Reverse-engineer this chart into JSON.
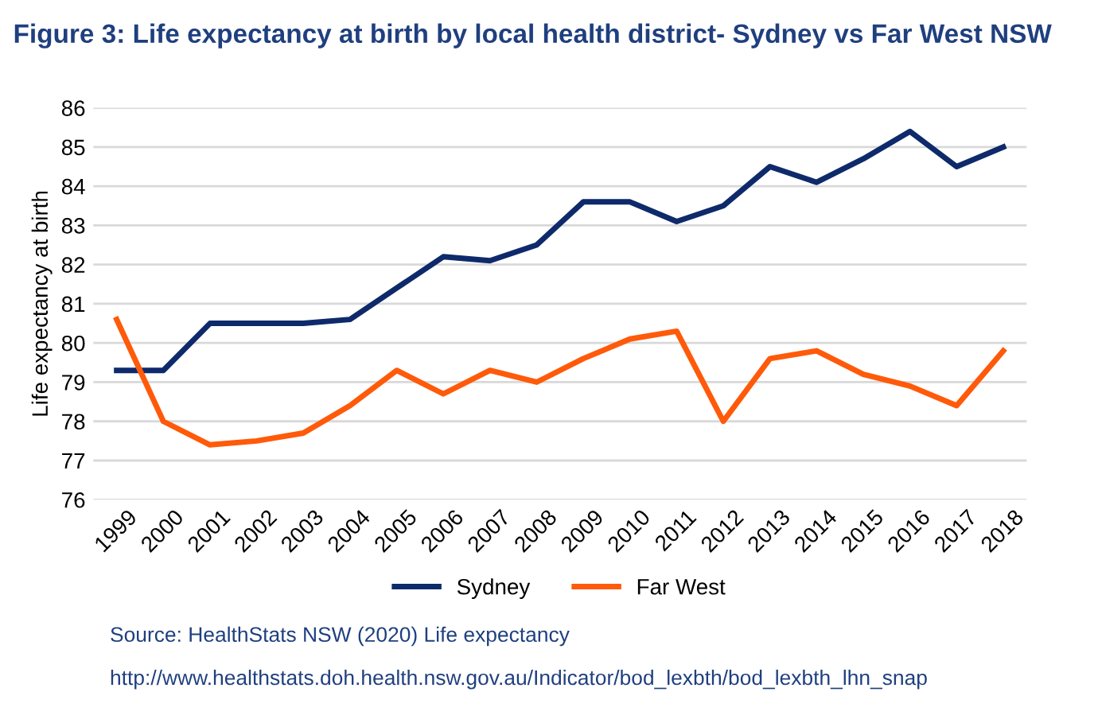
{
  "chart_data": {
    "type": "line",
    "title": "Figure 3: Life expectancy at birth by local health district- Sydney vs Far West NSW",
    "ylabel": "Life expectancy at birth",
    "categories": [
      "1999",
      "2000",
      "2001",
      "2002",
      "2003",
      "2004",
      "2005",
      "2006",
      "2007",
      "2008",
      "2009",
      "2010",
      "2011",
      "2012",
      "2013",
      "2014",
      "2015",
      "2016",
      "2017",
      "2018"
    ],
    "series": [
      {
        "name": "Sydney",
        "color": "#0e2a6b",
        "values": [
          79.3,
          79.3,
          80.5,
          80.5,
          80.5,
          80.6,
          81.4,
          82.2,
          82.1,
          82.5,
          83.6,
          83.6,
          83.1,
          83.5,
          84.5,
          84.1,
          84.7,
          85.4,
          84.5,
          85.0
        ]
      },
      {
        "name": "Far West",
        "color": "#ff5a0a",
        "values": [
          80.6,
          78.0,
          77.4,
          77.5,
          77.7,
          78.4,
          79.3,
          78.7,
          79.3,
          79.0,
          79.6,
          80.1,
          80.3,
          78.0,
          79.6,
          79.8,
          79.2,
          78.9,
          78.4,
          79.8
        ]
      }
    ],
    "ylim": [
      76,
      86
    ],
    "yticks": [
      76,
      77,
      78,
      79,
      80,
      81,
      82,
      83,
      84,
      85,
      86
    ],
    "grid": "y",
    "legend": "bottom",
    "marker": "none",
    "line_style": "solid",
    "annotations": [
      "Source: HealthStats NSW (2020) Life expectancy",
      "http://www.healthstats.doh.health.nsw.gov.au/Indicator/bod_lexbth/bod_lexbth_lhn_snap"
    ]
  }
}
